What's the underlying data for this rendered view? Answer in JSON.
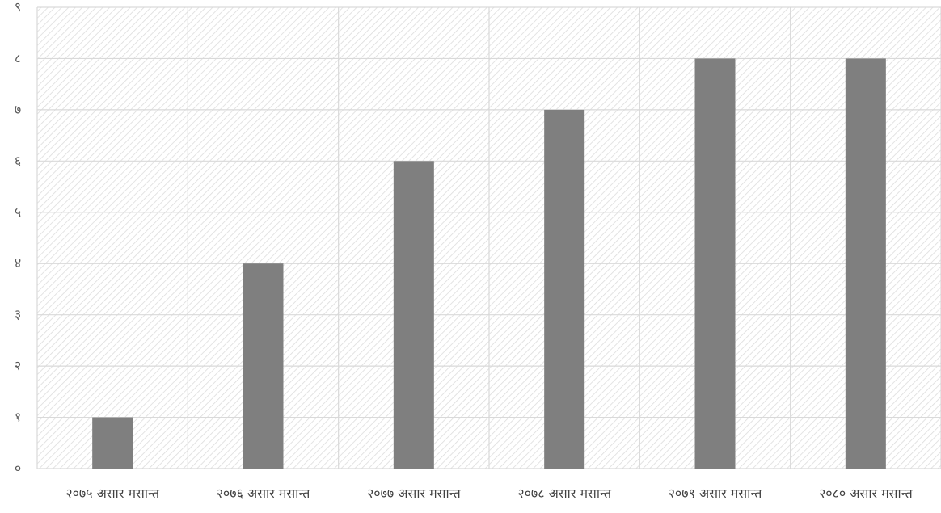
{
  "chart_data": {
    "type": "bar",
    "title": "",
    "xlabel": "",
    "ylabel": "",
    "categories": [
      "२०७५ असार मसान्त",
      "२०७६ असार मसान्त",
      "२०७७ असार मसान्त",
      "२०७८ असार मसान्त",
      "२०७९ असार मसान्त",
      "२०८० असार मसान्त"
    ],
    "values": [
      1,
      4,
      6,
      7,
      8,
      8
    ],
    "ylim": [
      0,
      9
    ],
    "yticks": [
      0,
      1,
      2,
      3,
      4,
      5,
      6,
      7,
      8,
      9
    ],
    "ytick_labels": [
      "०",
      "१",
      "२",
      "३",
      "४",
      "५",
      "६",
      "७",
      "८",
      "९"
    ],
    "grid": true,
    "legend": "none",
    "colors": {
      "bar": "#7f7f7f",
      "gridline": "#d9d9d9",
      "hatch": "#dcdcdc",
      "text": "#404040"
    }
  }
}
